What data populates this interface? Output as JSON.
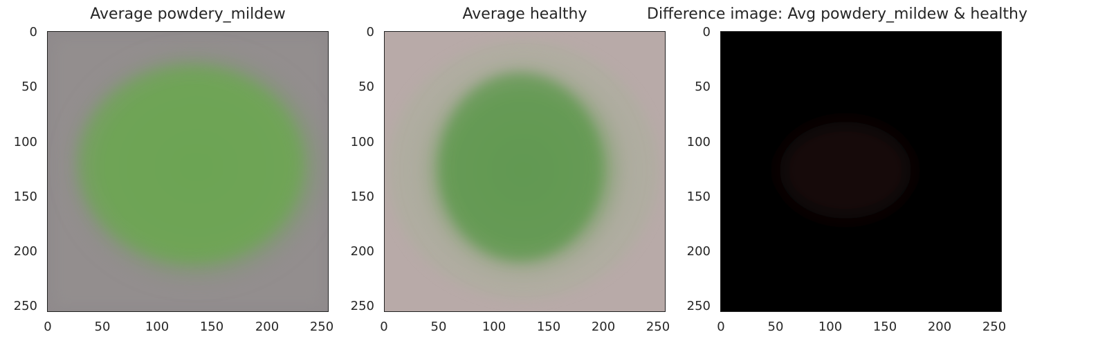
{
  "panels": [
    {
      "title": "Average powdery_mildew"
    },
    {
      "title": "Average healthy"
    },
    {
      "title": "Difference image: Avg powdery_mildew & healthy"
    }
  ],
  "axis": {
    "ticks": [
      "0",
      "50",
      "100",
      "150",
      "200",
      "250"
    ]
  },
  "colors": {
    "mildew_bg": "#8f8a8c",
    "mildew_leaf": "#6aa451",
    "healthy_bg": "#b8aaa8",
    "healthy_leaf": "#6a9a58",
    "diff_bg": "#000000",
    "diff_spot": "#1a0b0b"
  }
}
